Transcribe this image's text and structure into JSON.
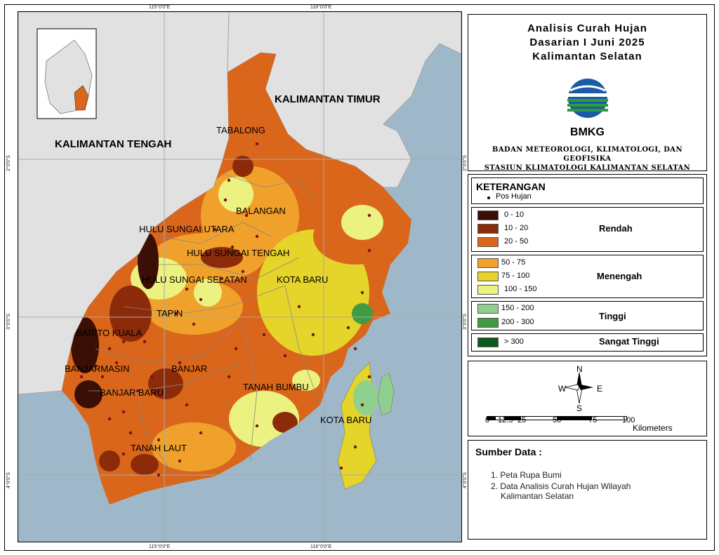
{
  "map": {
    "neighbors": {
      "kaltim": "KALIMANTAN TIMUR",
      "kalteng": "KALIMANTAN TENGAH"
    },
    "regencies": [
      {
        "id": "tabalong",
        "label": "TABALONG"
      },
      {
        "id": "balangan",
        "label": "BALANGAN"
      },
      {
        "id": "hsu",
        "label": "HULU SUNGAI UTARA"
      },
      {
        "id": "hst",
        "label": "HULU SUNGAI TENGAH"
      },
      {
        "id": "hss",
        "label": "HULU SUNGAI SELATAN"
      },
      {
        "id": "kotabaru1",
        "label": "KOTA BARU"
      },
      {
        "id": "tapin",
        "label": "TAPIN"
      },
      {
        "id": "batola",
        "label": "BARITO KUALA"
      },
      {
        "id": "bjm",
        "label": "BANJARMASIN"
      },
      {
        "id": "banjar",
        "label": "BANJAR"
      },
      {
        "id": "bjb",
        "label": "BANJAR BARU"
      },
      {
        "id": "tanbu",
        "label": "TANAH BUMBU"
      },
      {
        "id": "kotabaru2",
        "label": "KOTA BARU"
      },
      {
        "id": "tala",
        "label": "TANAH LAUT"
      }
    ],
    "coords": {
      "top": [
        "115°0'0\"E",
        "116°0'0\"E"
      ],
      "bottom": [
        "115°0'0\"E",
        "116°0'0\"E"
      ],
      "left": [
        "2°0'0\"S",
        "3°0'0\"S",
        "4°0'0\"S"
      ],
      "right": [
        "2°0'0\"S",
        "3°0'0\"S",
        "4°0'0\"S"
      ]
    },
    "colors": {
      "sea": "#9fb8c9",
      "land_other": "#e1e1e1",
      "c0_10": "#3b0f04",
      "c10_20": "#8c2b0a",
      "c20_50": "#d9661a",
      "c50_75": "#f0a12b",
      "c75_100": "#e5d42a",
      "c100_150": "#ecf280",
      "c150_200": "#8fd08f",
      "c200_300": "#3f9c45",
      "c300": "#0e5a1e",
      "pos": "#7a1318"
    }
  },
  "title": {
    "line1": "Analisis Curah Hujan",
    "line2": "Dasarian I Juni 2025",
    "line3": "Kalimantan Selatan"
  },
  "agency": {
    "logo_text": "BMKG",
    "name": "BADAN METEOROLOGI, KLIMATOLOGI, DAN GEOFISIKA",
    "station": "STASIUN KLIMATOLOGI KALIMANTAN SELATAN"
  },
  "legend": {
    "title": "KETERANGAN",
    "pos_label": "Pos Hujan",
    "groups": [
      {
        "category": "Rendah",
        "items": [
          {
            "label": "0 - 10",
            "color": "#3b0f04"
          },
          {
            "label": "10 - 20",
            "color": "#8c2b0a"
          },
          {
            "label": "20 - 50",
            "color": "#d9661a"
          }
        ]
      },
      {
        "category": "Menengah",
        "items": [
          {
            "label": "50 - 75",
            "color": "#f0a12b"
          },
          {
            "label": "75 - 100",
            "color": "#e5d42a"
          },
          {
            "label": "100 - 150",
            "color": "#ecf280"
          }
        ]
      },
      {
        "category": "Tinggi",
        "items": [
          {
            "label": "150 - 200",
            "color": "#8fd08f"
          },
          {
            "label": "200 - 300",
            "color": "#3f9c45"
          }
        ]
      },
      {
        "category": "Sangat Tinggi",
        "items": [
          {
            "label": "> 300",
            "color": "#0e5a1e"
          }
        ]
      }
    ]
  },
  "compass": {
    "n": "N",
    "s": "S",
    "e": "E",
    "w": "W"
  },
  "scale": {
    "ticks": [
      "0",
      "12.5",
      "25",
      "50",
      "75",
      "100"
    ],
    "unit": "Kilometers"
  },
  "source": {
    "title": "Sumber Data :",
    "items": [
      "1. Peta Rupa Bumi",
      "2. Data Analisis Curah Hujan Wilayah",
      "Kalimantan Selatan"
    ]
  }
}
